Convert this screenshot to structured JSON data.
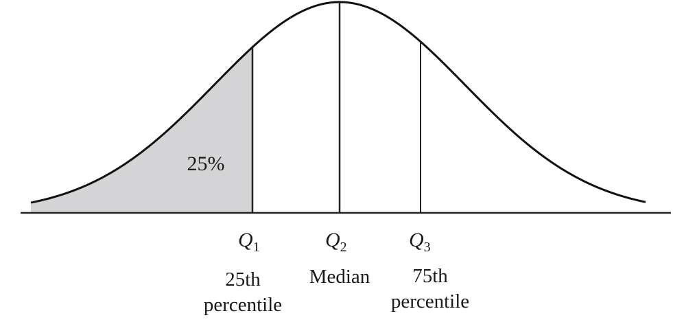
{
  "diagram": {
    "shaded_area_label": "25%",
    "markers": [
      {
        "symbol": "Q",
        "subscript": "1",
        "description_lines": [
          "25th",
          "percentile"
        ]
      },
      {
        "symbol": "Q",
        "subscript": "2",
        "description_lines": [
          "Median"
        ]
      },
      {
        "symbol": "Q",
        "subscript": "3",
        "description_lines": [
          "75th",
          "percentile"
        ]
      }
    ],
    "colors": {
      "curve": "#111111",
      "shaded_region": "#d4d4d6",
      "lines": "#222222"
    }
  }
}
